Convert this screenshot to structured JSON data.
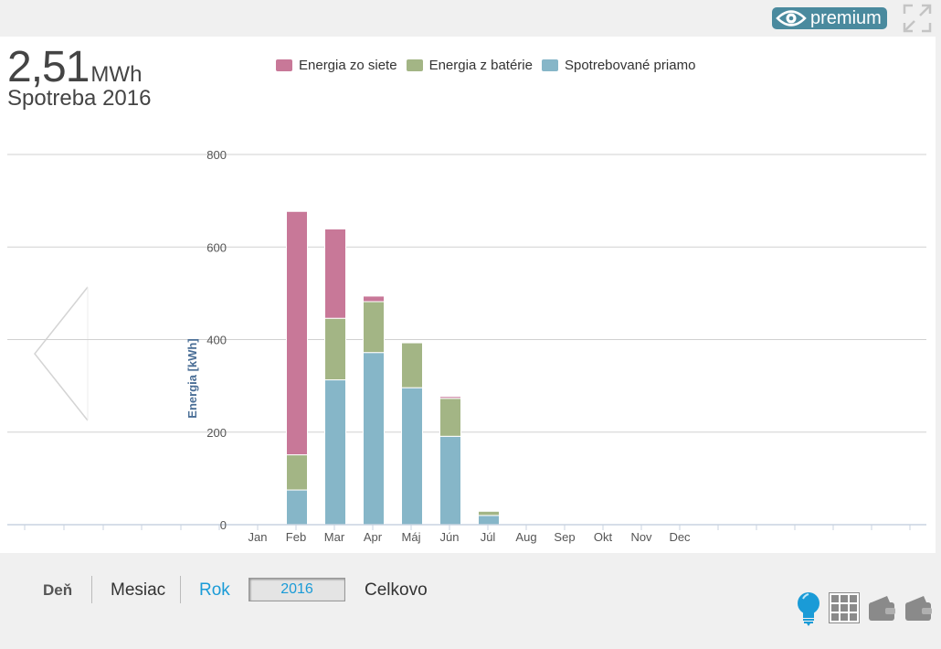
{
  "header": {
    "premium_label": "premium"
  },
  "summary": {
    "value": "2,51",
    "unit": "MWh",
    "subtitle": "Spotreba 2016"
  },
  "legend": [
    {
      "label": "Energia zo siete",
      "color": "#c87898"
    },
    {
      "label": "Energia z batérie",
      "color": "#a3b585"
    },
    {
      "label": "Spotrebované priamo",
      "color": "#86b6c8"
    }
  ],
  "chart_data": {
    "type": "bar",
    "stacked": true,
    "categories": [
      "Jan",
      "Feb",
      "Mar",
      "Apr",
      "Máj",
      "Jún",
      "Júl",
      "Aug",
      "Sep",
      "Okt",
      "Nov",
      "Dec"
    ],
    "series": [
      {
        "name": "Spotrebované priamo",
        "color": "#86b6c8",
        "values": [
          0,
          75,
          313,
          372,
          296,
          191,
          20,
          0,
          0,
          0,
          0,
          0
        ]
      },
      {
        "name": "Energia z batérie",
        "color": "#a3b585",
        "values": [
          0,
          76,
          133,
          110,
          97,
          82,
          9,
          0,
          0,
          0,
          0,
          0
        ]
      },
      {
        "name": "Energia zo siete",
        "color": "#c87898",
        "values": [
          0,
          526,
          193,
          12,
          0,
          4,
          0,
          0,
          0,
          0,
          0,
          0
        ]
      }
    ],
    "ylabel": "Energia [kWh]",
    "yticks": [
      0,
      200,
      400,
      600,
      800
    ],
    "ylim": [
      0,
      800
    ],
    "grid": true
  },
  "bottom": {
    "tabs": [
      "Deň",
      "Mesiac",
      "Rok",
      "Celkovo"
    ],
    "active_tab": "Rok",
    "year": "2016"
  },
  "colors": {
    "active": "#1a9bd7",
    "bulb": "#1a9bd7",
    "gray_icon": "#8a8a8a"
  }
}
